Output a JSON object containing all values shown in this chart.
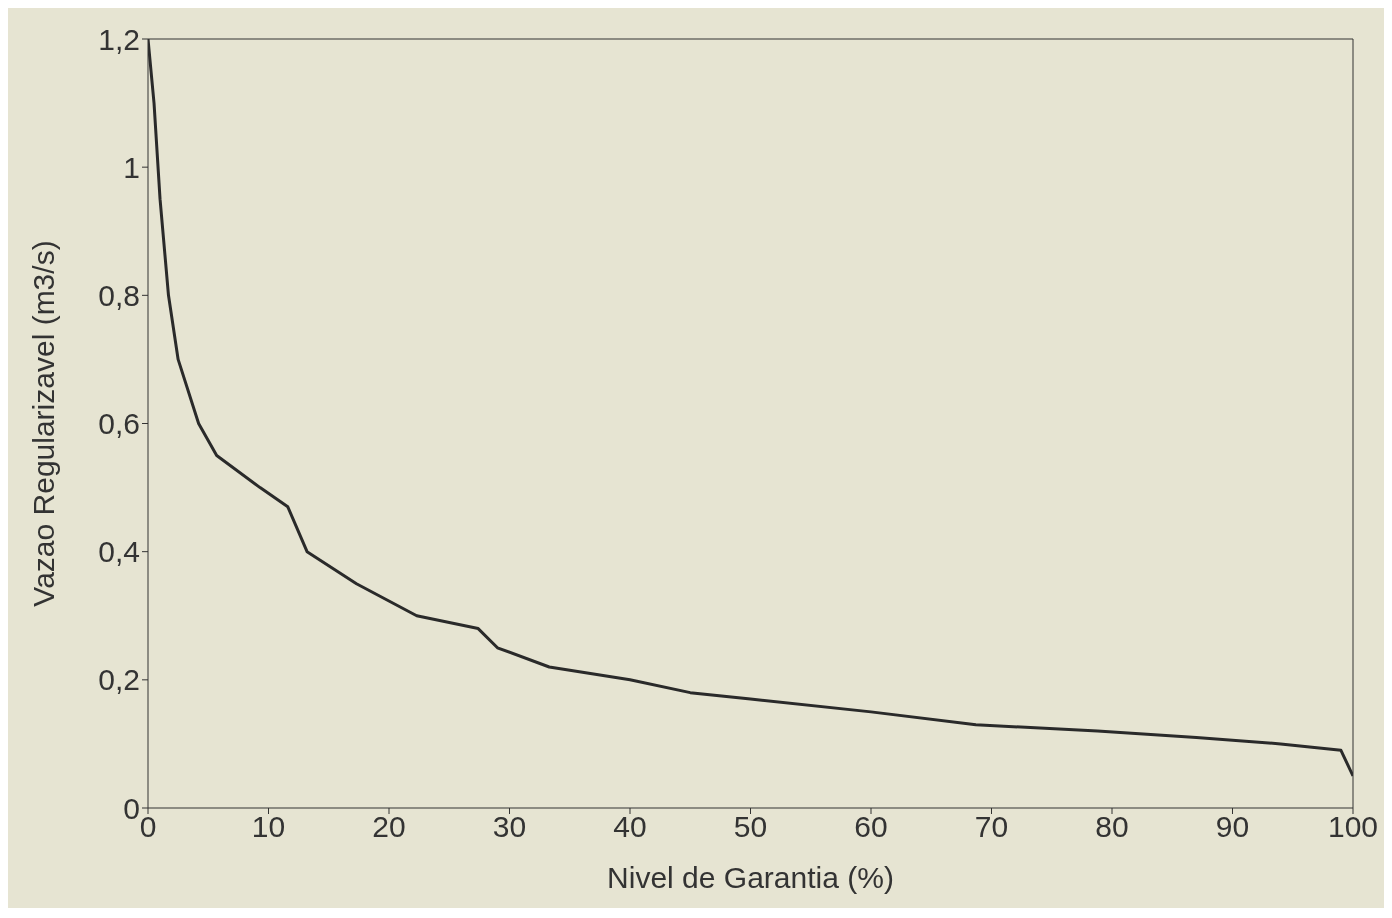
{
  "chart_data": {
    "type": "line",
    "xlabel": "Nivel de Garantia (%)",
    "ylabel": "Vazao Regularizavel (m3/s)",
    "x": [
      0,
      0.5,
      1,
      1.7,
      2.5,
      4.2,
      5.7,
      9.3,
      11.6,
      13.2,
      17.3,
      22.3,
      27.4,
      29,
      33.3,
      40,
      45,
      50,
      60,
      68.7,
      78.8,
      87,
      94,
      99,
      100
    ],
    "series": [
      {
        "color": "#2a2a2a",
        "values": [
          1.2,
          1.1,
          0.95,
          0.8,
          0.7,
          0.6,
          0.55,
          0.5,
          0.47,
          0.4,
          0.35,
          0.3,
          0.28,
          0.25,
          0.22,
          0.2,
          0.18,
          0.17,
          0.15,
          0.13,
          0.12,
          0.11,
          0.1,
          0.09,
          0.05
        ]
      }
    ],
    "xlim": [
      0,
      100
    ],
    "xticks": [
      0,
      10,
      20,
      30,
      40,
      50,
      60,
      70,
      80,
      90,
      100
    ],
    "ylim": [
      0,
      1.2
    ],
    "yticks": [
      0,
      {
        "value": 0.2,
        "label": "0,2"
      },
      {
        "value": 0.4,
        "label": "0,4"
      },
      {
        "value": 0.6,
        "label": "0,6"
      },
      {
        "value": 0.8,
        "label": "0,8"
      },
      1,
      {
        "value": 1.2,
        "label": "1,2"
      }
    ],
    "grid": false,
    "legend": false,
    "marker": "none",
    "line_style": "solid"
  }
}
